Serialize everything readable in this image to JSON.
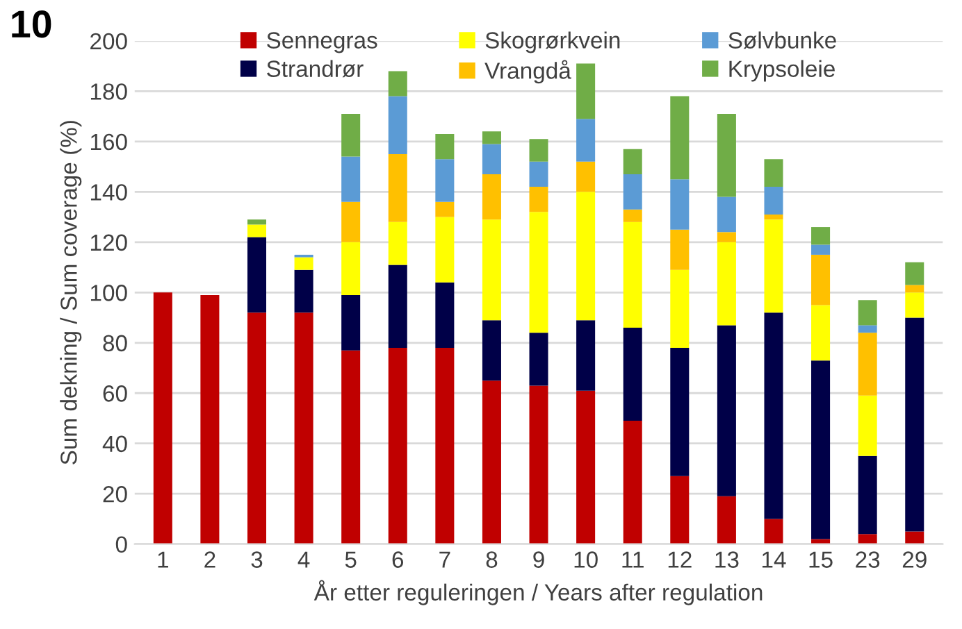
{
  "chart_data": {
    "type": "bar",
    "stacked": true,
    "annotations": [
      "10"
    ],
    "xlabel": "År etter reguleringen / Years after regulation",
    "ylabel": "Sum dekning / Sum coverage (%)",
    "categories": [
      "1",
      "2",
      "3",
      "4",
      "5",
      "6",
      "7",
      "8",
      "9",
      "10",
      "11",
      "12",
      "13",
      "14",
      "15",
      "23",
      "29"
    ],
    "ylim": [
      0,
      200
    ],
    "yticks": [
      0,
      20,
      40,
      60,
      80,
      100,
      120,
      140,
      160,
      180,
      200
    ],
    "grid": "y",
    "legend": "top",
    "series": [
      {
        "name": "Sennegras",
        "color": "#c00000",
        "values": [
          100,
          99,
          92,
          92,
          77,
          78,
          78,
          65,
          63,
          61,
          49,
          27,
          19,
          10,
          2,
          4,
          5
        ]
      },
      {
        "name": "Strandrør",
        "color": "#000048",
        "values": [
          0,
          0,
          30,
          17,
          22,
          33,
          26,
          24,
          21,
          28,
          37,
          51,
          68,
          82,
          71,
          31,
          85
        ]
      },
      {
        "name": "Skogrørkvein",
        "color": "#ffff00",
        "values": [
          0,
          0,
          5,
          5,
          21,
          17,
          26,
          40,
          48,
          51,
          42,
          31,
          33,
          37,
          22,
          24,
          10
        ]
      },
      {
        "name": "Vrangdå",
        "color": "#ffc000",
        "values": [
          0,
          0,
          0,
          0,
          16,
          27,
          6,
          18,
          10,
          12,
          5,
          16,
          4,
          2,
          20,
          25,
          3
        ]
      },
      {
        "name": "Sølvbunke",
        "color": "#5b9bd5",
        "values": [
          0,
          0,
          0,
          1,
          18,
          23,
          17,
          12,
          10,
          17,
          14,
          20,
          14,
          11,
          4,
          3,
          0
        ]
      },
      {
        "name": "Krypsoleie",
        "color": "#70ad47",
        "values": [
          0,
          0,
          2,
          0,
          17,
          10,
          10,
          5,
          9,
          22,
          10,
          33,
          33,
          11,
          7,
          10,
          9
        ]
      }
    ]
  }
}
